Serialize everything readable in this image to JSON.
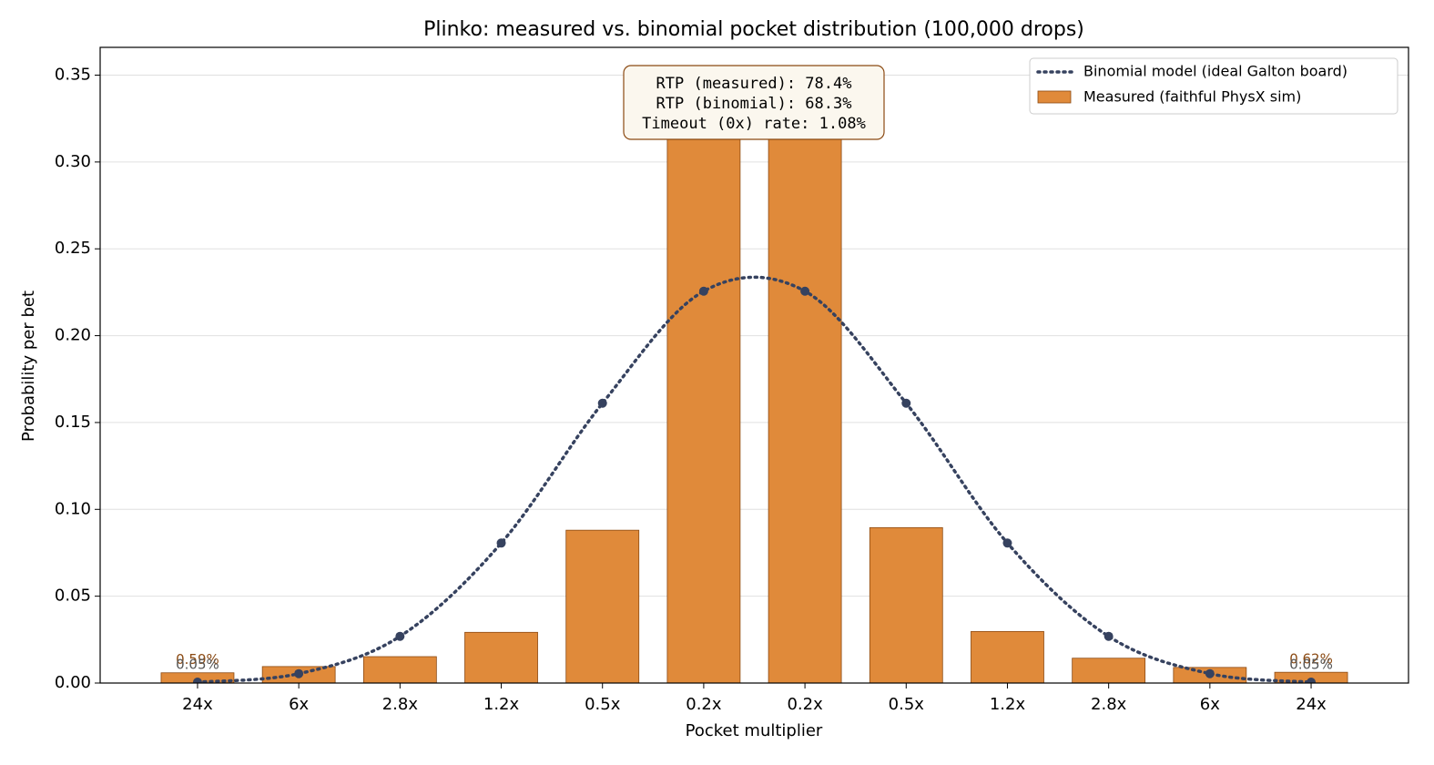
{
  "chart_data": {
    "type": "bar",
    "title": "Plinko: measured vs. binomial pocket distribution  (100,000 drops)",
    "x_label": "Pocket multiplier",
    "y_label": "Probability per bet",
    "categories": [
      "24x",
      "6x",
      "2.8x",
      "1.2x",
      "0.5x",
      "0.2x",
      "0.2x",
      "0.5x",
      "1.2x",
      "2.8x",
      "6x",
      "24x"
    ],
    "series": [
      {
        "name": "Binomial model (ideal Galton board)",
        "type": "line",
        "color": "#36425f",
        "values": [
          0.0005,
          0.0054,
          0.0269,
          0.0806,
          0.1611,
          0.2256,
          0.2256,
          0.1611,
          0.0806,
          0.0269,
          0.0054,
          0.0005
        ],
        "value_labels": [
          "0.05%",
          null,
          null,
          null,
          null,
          null,
          null,
          null,
          null,
          null,
          null,
          "0.05%"
        ]
      },
      {
        "name": "Measured (faithful PhysX sim)",
        "type": "bar",
        "color": "#e08a3a",
        "values": [
          0.0059,
          0.0095,
          0.0152,
          0.0292,
          0.088,
          0.347,
          0.346,
          0.0895,
          0.0297,
          0.0143,
          0.009,
          0.0062
        ],
        "value_labels": [
          "0.59%",
          null,
          null,
          null,
          null,
          null,
          null,
          null,
          null,
          null,
          null,
          "0.62%"
        ]
      }
    ],
    "annotation": [
      "RTP (measured): 78.4%",
      "RTP (binomial): 68.3%",
      "Timeout (0x) rate: 1.08%"
    ],
    "ylim": [
      0,
      0.366
    ],
    "yticks": [
      {
        "value": 0,
        "label": "0.00"
      },
      {
        "value": 0.05,
        "label": "0.05"
      },
      {
        "value": 0.1,
        "label": "0.10"
      },
      {
        "value": 0.15,
        "label": "0.15"
      },
      {
        "value": 0.2,
        "label": "0.20"
      },
      {
        "value": 0.25,
        "label": "0.25"
      },
      {
        "value": 0.3,
        "label": "0.30"
      },
      {
        "value": 0.35,
        "label": "0.35"
      }
    ],
    "grid": true,
    "legend": "upper right"
  }
}
